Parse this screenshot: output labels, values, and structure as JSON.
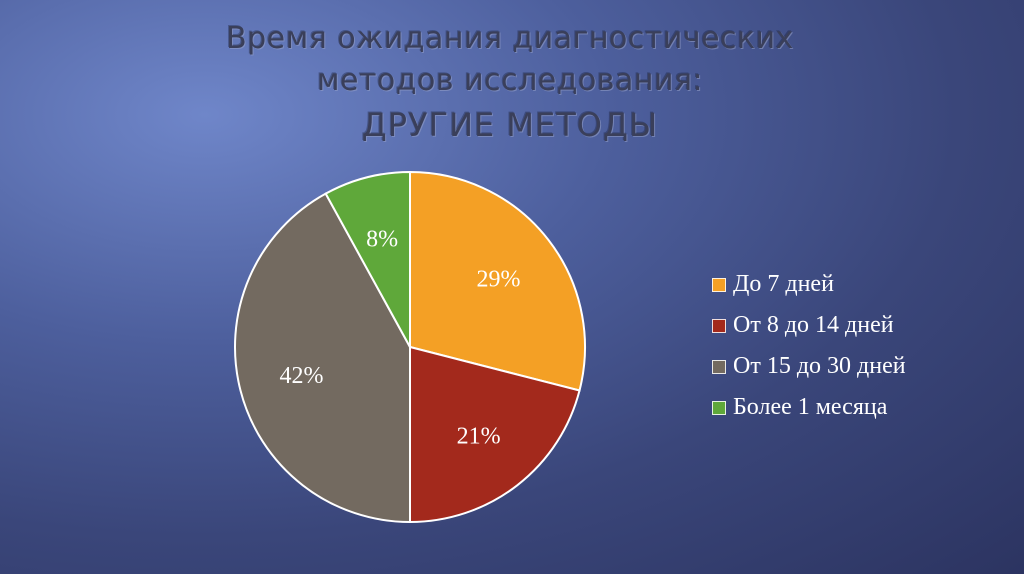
{
  "title": {
    "line1": "Время ожидания диагностических",
    "line2": "методов исследования:",
    "line3": "ДРУГИЕ МЕТОДЫ"
  },
  "chart_data": {
    "type": "pie",
    "title": "Время ожидания диагностических методов исследования: ДРУГИЕ МЕТОДЫ",
    "categories": [
      "До 7 дней",
      "От 8 до 14 дней",
      "От 15 до 30 дней",
      "Более 1 месяца"
    ],
    "values": [
      29,
      21,
      42,
      8
    ],
    "labels": [
      "29%",
      "21%",
      "42%",
      "8%"
    ],
    "colors": [
      "#f4a025",
      "#a3291c",
      "#736a60",
      "#5fa83a"
    ],
    "legend_position": "right"
  }
}
